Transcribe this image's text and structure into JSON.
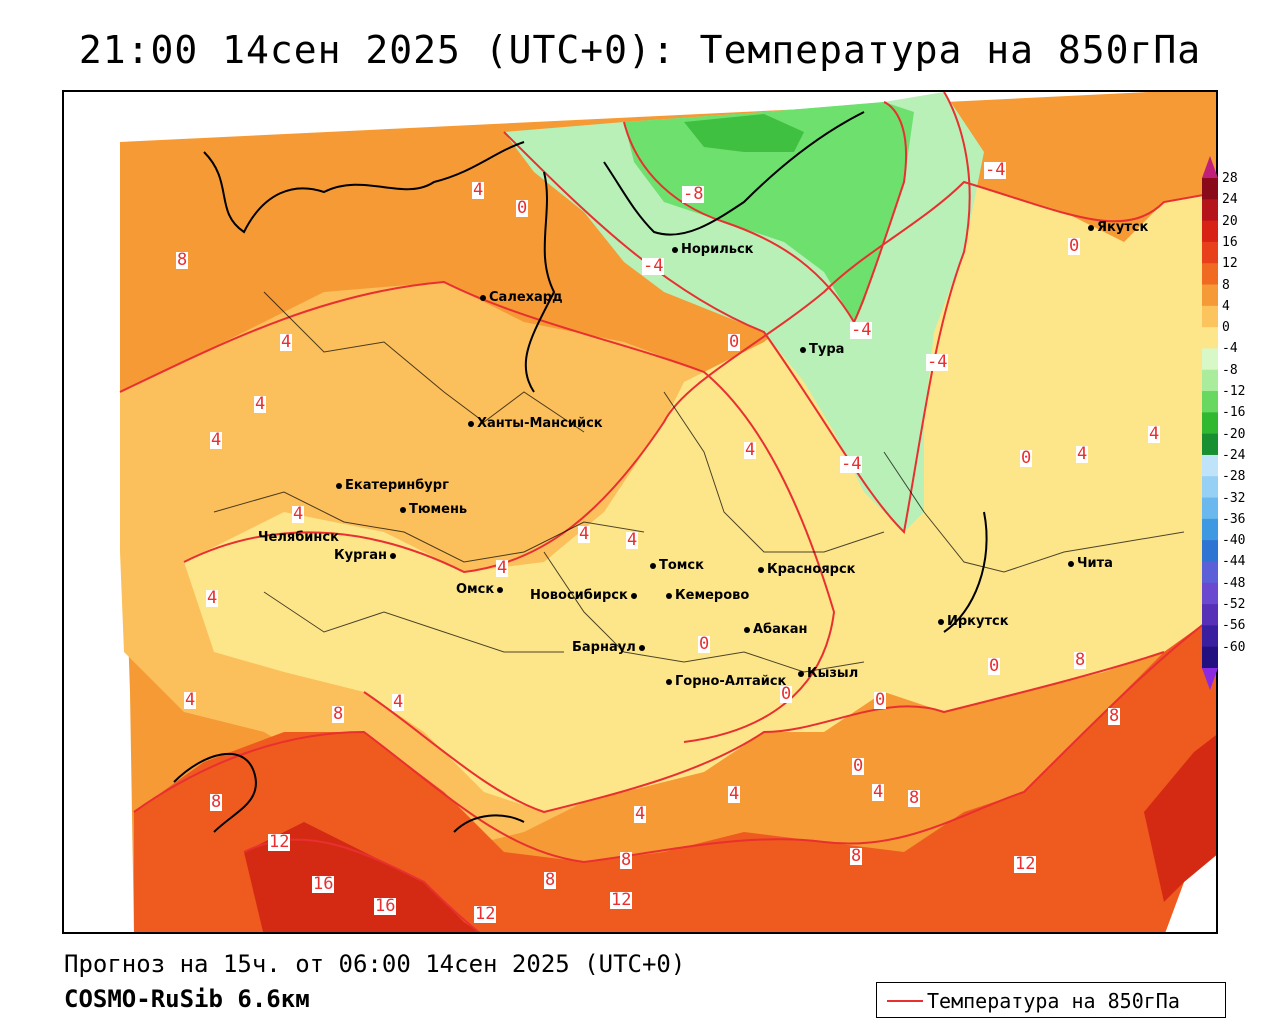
{
  "title": "21:00 14сен 2025 (UTC+0): Температура на 850гПа",
  "forecast_text": "Прогноз на 15ч. от 06:00 14сен 2025 (UTC+0)",
  "model_text": "COSMO-RuSib 6.6км",
  "legend_label": "Температура на 850гПа",
  "colors": {
    "contour": "#e83030",
    "land_cold_green": "#40c040",
    "land_light_green": "#b8f0b8",
    "yellow": "#fde58a",
    "light_orange": "#fbbf5c",
    "orange": "#f59a35",
    "red_orange": "#ef5a1f",
    "red": "#d42a14"
  },
  "colorbar": {
    "labels": [
      "28",
      "24",
      "20",
      "16",
      "12",
      "8",
      "4",
      "0",
      "-4",
      "-8",
      "-12",
      "-16",
      "-20",
      "-24",
      "-28",
      "-32",
      "-36",
      "-40",
      "-44",
      "-48",
      "-52",
      "-56",
      "-60"
    ],
    "colors": [
      "#8b0a1a",
      "#b5141a",
      "#d82216",
      "#e8401a",
      "#f06a22",
      "#f69a38",
      "#fbc45c",
      "#fde58a",
      "#d8f8c8",
      "#a8ec9c",
      "#68d860",
      "#30b830",
      "#188f30",
      "#bfe3f8",
      "#96d0f4",
      "#6ab8ee",
      "#3f98e2",
      "#2e74d2",
      "#5c60d8",
      "#6a48d0",
      "#5830b8",
      "#3a1ea0",
      "#221080"
    ]
  },
  "cities": [
    {
      "name": "Якутск"
    },
    {
      "name": "Норильск"
    },
    {
      "name": "Салехард"
    },
    {
      "name": "Тура"
    },
    {
      "name": "Ханты-Мансийск"
    },
    {
      "name": "Екатеринбург"
    },
    {
      "name": "Тюмень"
    },
    {
      "name": "Челябинск"
    },
    {
      "name": "Курган"
    },
    {
      "name": "Омск"
    },
    {
      "name": "Новосибирск"
    },
    {
      "name": "Томск"
    },
    {
      "name": "Кемерово"
    },
    {
      "name": "Красноярск"
    },
    {
      "name": "Барнаул"
    },
    {
      "name": "Абакан"
    },
    {
      "name": "Горно-Алтайск"
    },
    {
      "name": "Кызыл"
    },
    {
      "name": "Иркутск"
    },
    {
      "name": "Чита"
    }
  ],
  "contour_labels": [
    "4",
    "0",
    "-8",
    "-4",
    "-4",
    "0",
    "8",
    "4",
    "4",
    "4",
    "-4",
    "-4",
    "0",
    "4",
    "4",
    "4",
    "4",
    "4",
    "4",
    "0",
    "4",
    "8",
    "0",
    "0",
    "0",
    "4",
    "4",
    "8",
    "12",
    "16",
    "16",
    "12",
    "8",
    "8",
    "12",
    "8",
    "4",
    "4",
    "4",
    "8",
    "12",
    "8",
    "0",
    "-4",
    "4",
    "0",
    "8"
  ]
}
